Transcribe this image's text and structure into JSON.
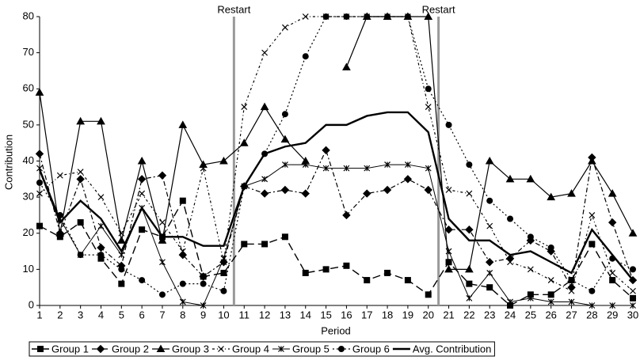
{
  "chart_data": {
    "type": "line",
    "y_label": "Contribution",
    "x_label": "Period",
    "x": [
      1,
      2,
      3,
      4,
      5,
      6,
      7,
      8,
      9,
      10,
      11,
      12,
      13,
      14,
      15,
      16,
      17,
      18,
      19,
      20,
      21,
      22,
      23,
      24,
      25,
      26,
      27,
      28,
      29,
      30
    ],
    "xlim": [
      1,
      30
    ],
    "xticks": [
      1,
      2,
      3,
      4,
      5,
      6,
      7,
      8,
      9,
      10,
      11,
      12,
      13,
      14,
      15,
      16,
      17,
      18,
      19,
      20,
      21,
      22,
      23,
      24,
      25,
      26,
      27,
      28,
      29,
      30
    ],
    "ylim": [
      0,
      80
    ],
    "yticks": [
      0,
      10,
      20,
      30,
      40,
      50,
      60,
      70,
      80
    ],
    "legend": "bottom",
    "annotations": [
      {
        "text": "Restart",
        "x": 10.5
      },
      {
        "text": "Restart",
        "x": 20.5
      }
    ],
    "annotation_color": "#999999",
    "series": [
      {
        "name": "Group 1",
        "color": "#000000",
        "marker": "square",
        "dash": "10,5",
        "width": 1.4,
        "values": [
          22,
          19,
          23,
          13,
          6,
          21,
          19,
          29,
          8,
          9,
          17,
          17,
          19,
          9,
          10,
          11,
          7,
          9,
          7,
          3,
          12,
          6,
          5,
          0,
          3,
          3,
          7,
          17,
          7,
          2
        ]
      },
      {
        "name": "Group 2",
        "color": "#000000",
        "marker": "diamond",
        "dash": "6,3,2,3",
        "width": 1.2,
        "values": [
          42,
          20,
          35,
          16,
          11,
          35,
          36,
          14,
          8,
          12,
          33,
          31,
          32,
          31,
          43,
          25,
          31,
          32,
          35,
          32,
          21,
          21,
          12,
          13,
          18,
          15,
          5,
          41,
          23,
          7
        ]
      },
      {
        "name": "Group 3",
        "color": "#000000",
        "marker": "triangle",
        "dash": "",
        "width": 1.2,
        "values": [
          59,
          20,
          51,
          51,
          18,
          40,
          18,
          50,
          39,
          40,
          45,
          55,
          46,
          40,
          null,
          66,
          80,
          80,
          80,
          80,
          10,
          10,
          40,
          35,
          35,
          30,
          31,
          40,
          31,
          20
        ]
      },
      {
        "name": "Group 4",
        "color": "#000000",
        "marker": "cross",
        "dash": "3,3,1,3",
        "width": 1.2,
        "values": [
          31,
          36,
          37,
          30,
          20,
          31,
          23,
          15,
          38,
          12,
          55,
          70,
          77,
          80,
          80,
          80,
          80,
          80,
          80,
          55,
          32,
          31,
          22,
          12,
          10,
          7,
          4,
          25,
          9,
          4
        ]
      },
      {
        "name": "Group 5",
        "color": "#000000",
        "marker": "asterisk",
        "dash": "",
        "width": 1,
        "values": [
          38,
          24,
          14,
          22,
          14,
          27,
          12,
          1,
          0,
          13,
          33,
          35,
          39,
          39,
          38,
          38,
          38,
          39,
          39,
          38,
          15,
          2,
          9,
          1,
          2,
          1,
          1,
          0,
          0,
          0
        ]
      },
      {
        "name": "Group 6",
        "color": "#000000",
        "marker": "circle",
        "dash": "2,3",
        "width": 1.2,
        "values": [
          34,
          25,
          14,
          14,
          10,
          7,
          3,
          6,
          6,
          4,
          33,
          42,
          53,
          69,
          80,
          80,
          80,
          80,
          80,
          60,
          50,
          39,
          29,
          24,
          19,
          16,
          7,
          4,
          13,
          10
        ]
      },
      {
        "name": "Avg. Contribution",
        "color": "#000000",
        "marker": "none",
        "dash": "",
        "width": 2.4,
        "values": [
          37.6,
          23,
          29,
          24,
          15,
          27,
          19,
          19,
          16.5,
          16.5,
          33,
          42,
          44,
          45,
          50,
          50,
          52.5,
          53.5,
          53.5,
          48,
          24,
          18,
          18,
          14,
          15,
          12,
          9,
          21,
          14,
          7
        ]
      }
    ]
  }
}
